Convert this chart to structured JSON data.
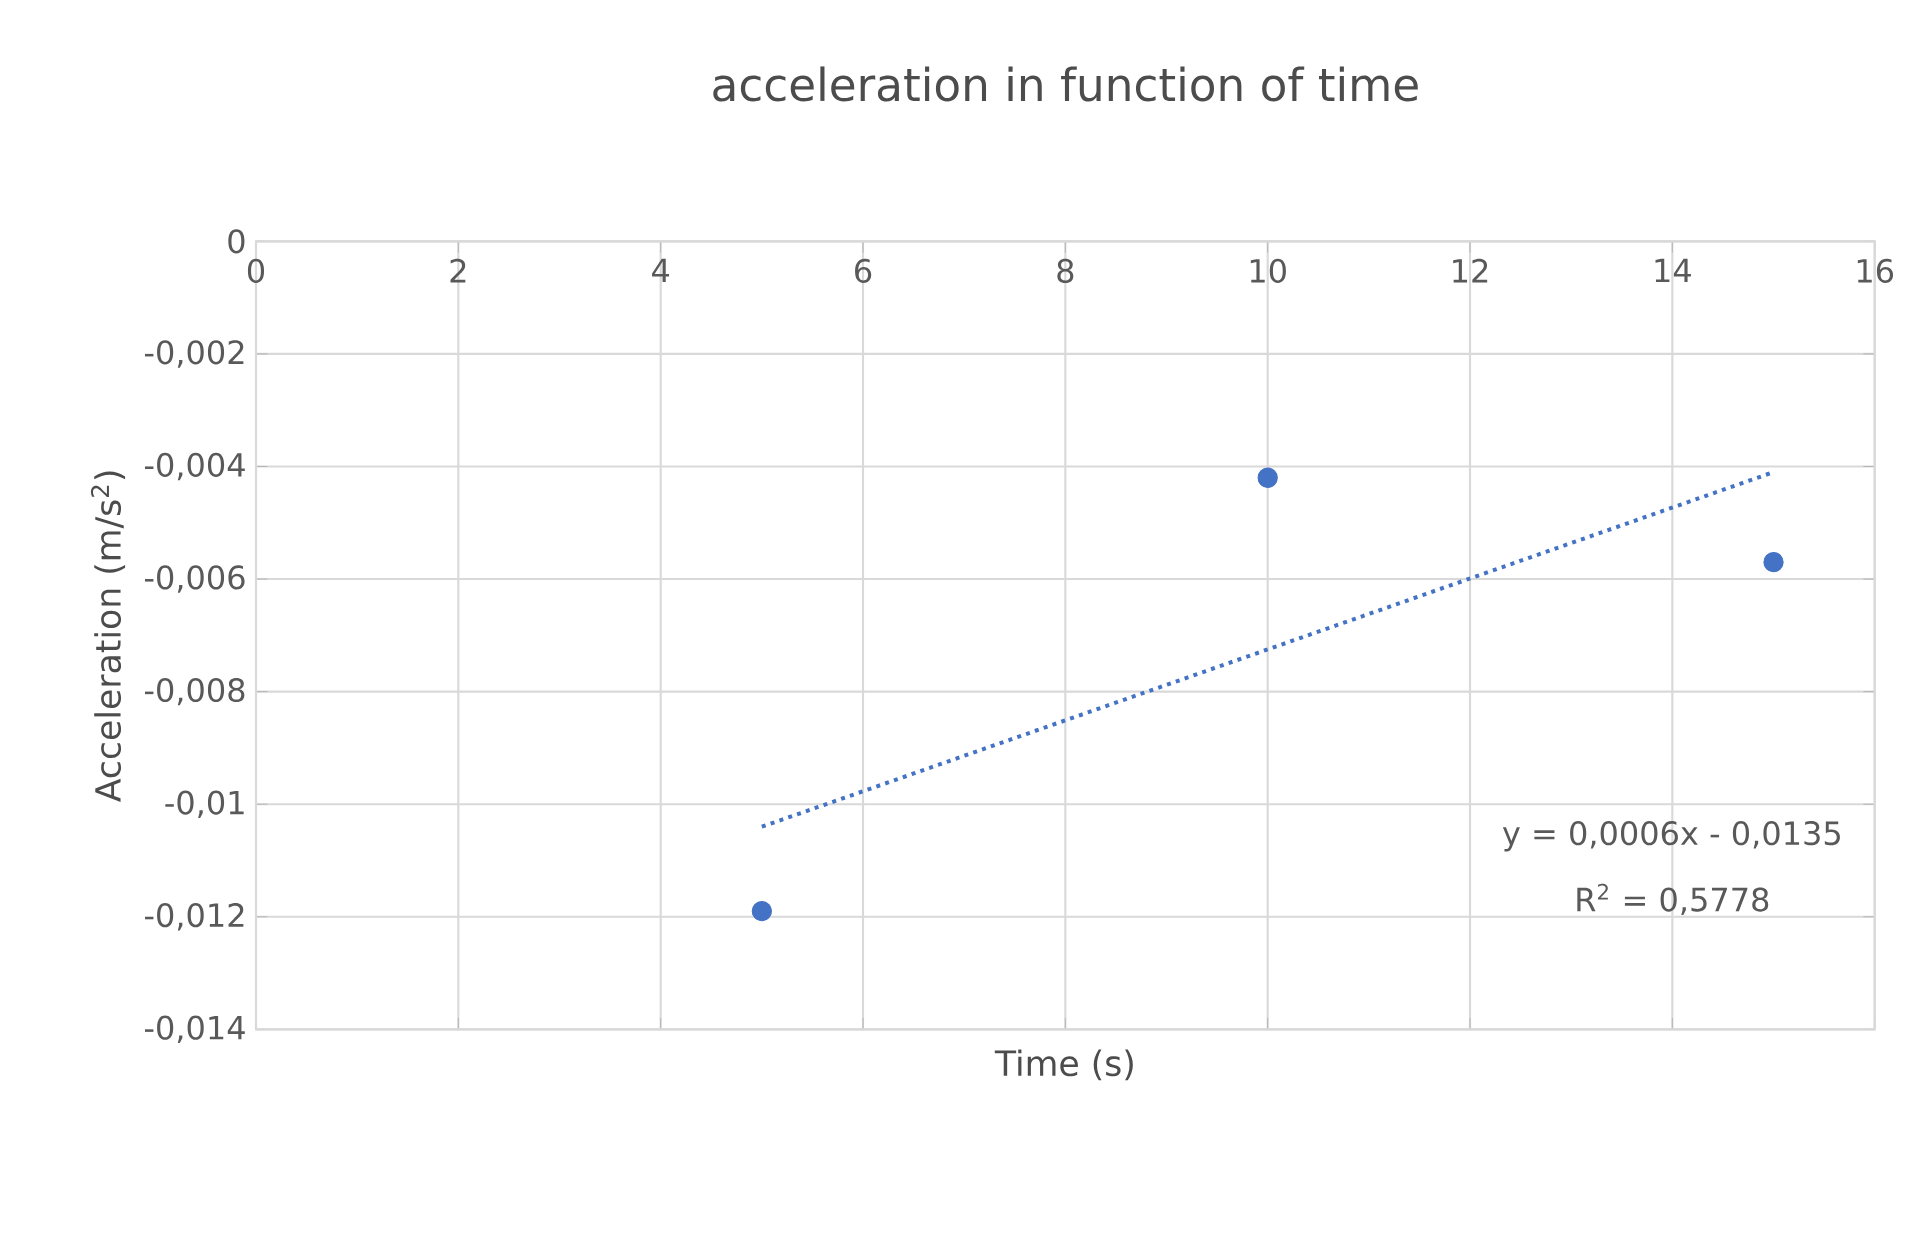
{
  "chart_data": {
    "type": "scatter",
    "title": "acceleration in function of time",
    "xlabel": "Time (s)",
    "ylabel": "Acceleration (m/s$^{2}$)",
    "series": [
      {
        "color": "#4472c4",
        "marker": "circle",
        "x": [
          5,
          10,
          15
        ],
        "values": [
          -0.0119,
          -0.0042,
          -0.0057
        ]
      },
      {
        "type": "line",
        "color": "#4472c4",
        "marker": "none",
        "line_style": "dotted",
        "x": [
          5,
          15
        ],
        "values": [
          -0.0104,
          -0.0041
        ]
      }
    ],
    "xlim": [
      0,
      16
    ],
    "xticks": [
      0,
      2,
      4,
      6,
      8,
      10,
      12,
      14,
      16
    ],
    "ylim": [
      -0.014,
      0
    ],
    "yticks": [
      {
        "value": -0.014,
        "label": "-0,014"
      },
      {
        "value": -0.012,
        "label": "-0,012"
      },
      {
        "value": -0.01,
        "label": "-0,01"
      },
      {
        "value": -0.008,
        "label": "-0,008"
      },
      {
        "value": -0.006,
        "label": "-0,006"
      },
      {
        "value": -0.004,
        "label": "-0,004"
      },
      {
        "value": -0.002,
        "label": "-0,002"
      },
      {
        "value": 0,
        "label": "0"
      }
    ],
    "grid": true,
    "annotations": [
      "y = 0,0006x - 0,0135",
      "R$^{2}$ = 0,5778"
    ]
  }
}
